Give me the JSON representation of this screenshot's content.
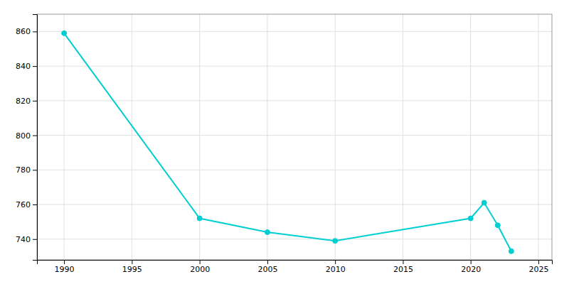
{
  "chart_data": {
    "type": "line",
    "x": [
      1990,
      2000,
      2005,
      2010,
      2020,
      2021,
      2022,
      2023
    ],
    "values": [
      859,
      752,
      744,
      739,
      752,
      761,
      748,
      733
    ],
    "color": "#00CED1",
    "marker": "circle",
    "xlim": [
      1988,
      2026
    ],
    "ylim": [
      728,
      870
    ],
    "xticks": [
      1990,
      1995,
      2000,
      2005,
      2010,
      2015,
      2020,
      2025
    ],
    "yticks": [
      740,
      760,
      780,
      800,
      820,
      840,
      860
    ],
    "grid": true
  }
}
